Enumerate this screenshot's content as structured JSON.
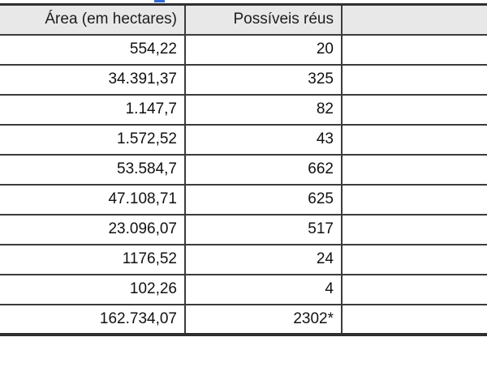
{
  "app": {
    "description": "cropped spreadsheet table",
    "colors": {
      "header_bg": "#e8e8e8",
      "grid_border": "#3b3b3b",
      "outer_border": "#2f2f2f",
      "text": "#111111",
      "top_artifact_blue": "#2f6bd8",
      "page_bg": "#ffffff"
    }
  },
  "table": {
    "columns": [
      "Área (em hectares)",
      "Possíveis réus",
      ""
    ],
    "rows": [
      [
        "554,22",
        "20",
        ""
      ],
      [
        "34.391,37",
        "325",
        ""
      ],
      [
        "1.147,7",
        "82",
        ""
      ],
      [
        "1.572,52",
        "43",
        ""
      ],
      [
        "53.584,7",
        "662",
        ""
      ],
      [
        "47.108,71",
        "625",
        ""
      ],
      [
        "23.096,07",
        "517",
        ""
      ],
      [
        "1176,52",
        "24",
        ""
      ],
      [
        "102,26",
        "4",
        ""
      ],
      [
        "162.734,07",
        "2302*",
        ""
      ]
    ]
  }
}
